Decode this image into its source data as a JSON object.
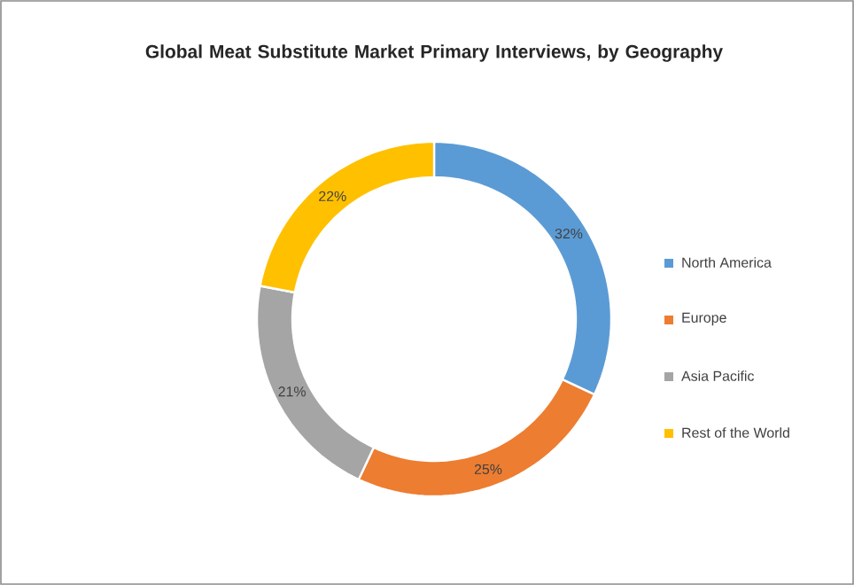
{
  "chart_data": {
    "type": "donut",
    "title": "Global Meat Substitute Market Primary Interviews, by Geography",
    "categories": [
      "North America",
      "Europe",
      "Asia Pacific",
      "Rest of the World"
    ],
    "values": [
      32,
      25,
      21,
      22
    ],
    "value_labels": [
      "32%",
      "25%",
      "21%",
      "22%"
    ],
    "colors": [
      "#5b9bd5",
      "#ed7d31",
      "#a5a5a5",
      "#ffc000"
    ],
    "legend": "right"
  }
}
